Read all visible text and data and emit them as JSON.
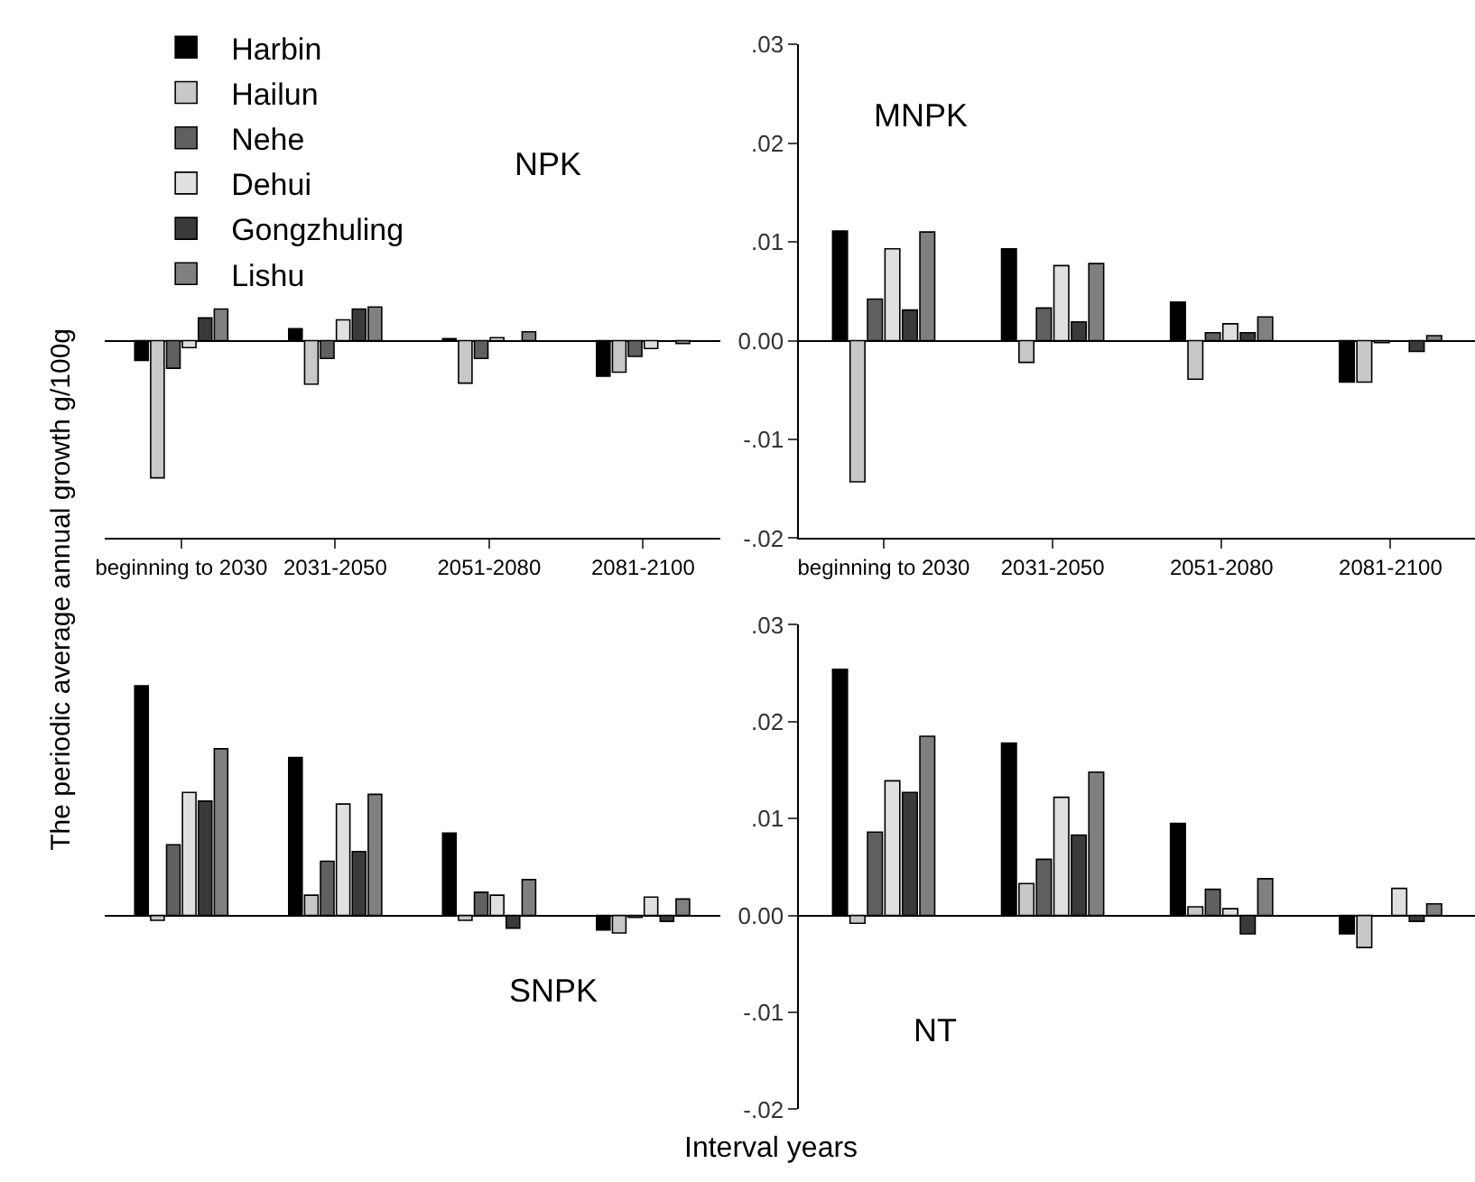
{
  "chart_data": [
    {
      "type": "bar",
      "title": "NPK",
      "ylabel": "The periodic average annual growth g/100g",
      "legend": "top left",
      "tick_labels": "x",
      "categories": [
        "beginning to 2030",
        "2031-2050",
        "2051-2080",
        "2081-2100"
      ],
      "ylim": [
        -0.02,
        0.03
      ],
      "series": [
        {
          "name": "Harbin",
          "color": "#000000",
          "values": [
            -0.002,
            0.0012,
            0.0002,
            -0.0036
          ]
        },
        {
          "name": "Hailun",
          "color": "#c8c8c8",
          "values": [
            -0.0139,
            -0.0044,
            -0.0043,
            -0.0032
          ]
        },
        {
          "name": "Nehe",
          "color": "#606060",
          "values": [
            -0.0028,
            -0.0018,
            -0.0018,
            -0.0016
          ]
        },
        {
          "name": "Dehui",
          "color": "#e0e0e0",
          "values": [
            -0.0007,
            0.0021,
            0.0003,
            -0.0008
          ]
        },
        {
          "name": "Gongzhuling",
          "color": "#3a3a3a",
          "values": [
            0.0023,
            0.0032,
            null,
            null
          ]
        },
        {
          "name": "Lishu",
          "color": "#808080",
          "values": [
            0.0032,
            0.0034,
            0.0009,
            -0.0003
          ]
        }
      ]
    },
    {
      "type": "bar",
      "title": "MNPK",
      "categories": [
        "beginning to 2030",
        "2031-2050",
        "2051-2080",
        "2081-2100"
      ],
      "ylim": [
        -0.02,
        0.03
      ],
      "yticks": [
        {
          "value": -0.02,
          "label": "-.02"
        },
        {
          "value": -0.01,
          "label": "-.01"
        },
        {
          "value": 0,
          "label": "0.00"
        },
        {
          "value": 0.01,
          "label": ".01"
        },
        {
          "value": 0.02,
          "label": ".02"
        },
        {
          "value": 0.03,
          "label": ".03"
        }
      ],
      "series": [
        {
          "color": "#000000",
          "values": [
            0.0111,
            0.0093,
            0.0039,
            -0.0042
          ]
        },
        {
          "color": "#c8c8c8",
          "values": [
            -0.0143,
            -0.0022,
            -0.0039,
            -0.0042
          ]
        },
        {
          "color": "#606060",
          "values": [
            0.0042,
            0.0033,
            0.0008,
            -0.0002
          ]
        },
        {
          "color": "#e0e0e0",
          "values": [
            0.0093,
            0.0076,
            0.0017,
            null
          ]
        },
        {
          "color": "#3a3a3a",
          "values": [
            0.0031,
            0.0019,
            0.0008,
            -0.0011
          ]
        },
        {
          "color": "#808080",
          "values": [
            0.011,
            0.0078,
            0.0024,
            0.0005
          ]
        }
      ]
    },
    {
      "type": "bar",
      "title": "SNPK",
      "xlabel": "Interval years",
      "tick_labels": false,
      "categories": [
        null,
        null,
        null,
        null
      ],
      "ylim": [
        -0.02,
        0.03
      ],
      "series": [
        {
          "color": "#000000",
          "values": [
            0.0237,
            0.0163,
            0.0085,
            -0.0015
          ]
        },
        {
          "color": "#c8c8c8",
          "values": [
            -0.0005,
            0.0021,
            -0.0005,
            -0.0018
          ]
        },
        {
          "color": "#606060",
          "values": [
            0.0073,
            0.0056,
            0.0024,
            -0.0002
          ]
        },
        {
          "color": "#e0e0e0",
          "values": [
            0.0127,
            0.0115,
            0.0021,
            0.0019
          ]
        },
        {
          "color": "#3a3a3a",
          "values": [
            0.0118,
            0.0066,
            -0.0013,
            -0.0006
          ]
        },
        {
          "color": "#808080",
          "values": [
            0.0172,
            0.0125,
            0.0037,
            0.0017
          ]
        }
      ]
    },
    {
      "type": "bar",
      "title": "NT",
      "tick_labels": "y",
      "categories": [
        null,
        null,
        null,
        null
      ],
      "ylim": [
        -0.02,
        0.03
      ],
      "yticks": [
        {
          "value": -0.02,
          "label": "-.02"
        },
        {
          "value": -0.01,
          "label": "-.01"
        },
        {
          "value": 0,
          "label": "0.00"
        },
        {
          "value": 0.01,
          "label": ".01"
        },
        {
          "value": 0.02,
          "label": ".02"
        },
        {
          "value": 0.03,
          "label": ".03"
        }
      ],
      "series": [
        {
          "color": "#000000",
          "values": [
            0.0254,
            0.0178,
            0.0095,
            -0.0019
          ]
        },
        {
          "color": "#c8c8c8",
          "values": [
            -0.0008,
            0.0033,
            0.0009,
            -0.0033
          ]
        },
        {
          "color": "#606060",
          "values": [
            0.0086,
            0.0058,
            0.0027,
            null
          ]
        },
        {
          "color": "#e0e0e0",
          "values": [
            0.0139,
            0.0122,
            0.0007,
            0.0028
          ]
        },
        {
          "color": "#3a3a3a",
          "values": [
            0.0127,
            0.0083,
            -0.0019,
            -0.0006
          ]
        },
        {
          "color": "#808080",
          "values": [
            0.0185,
            0.0148,
            0.0038,
            0.0012
          ]
        }
      ]
    }
  ]
}
